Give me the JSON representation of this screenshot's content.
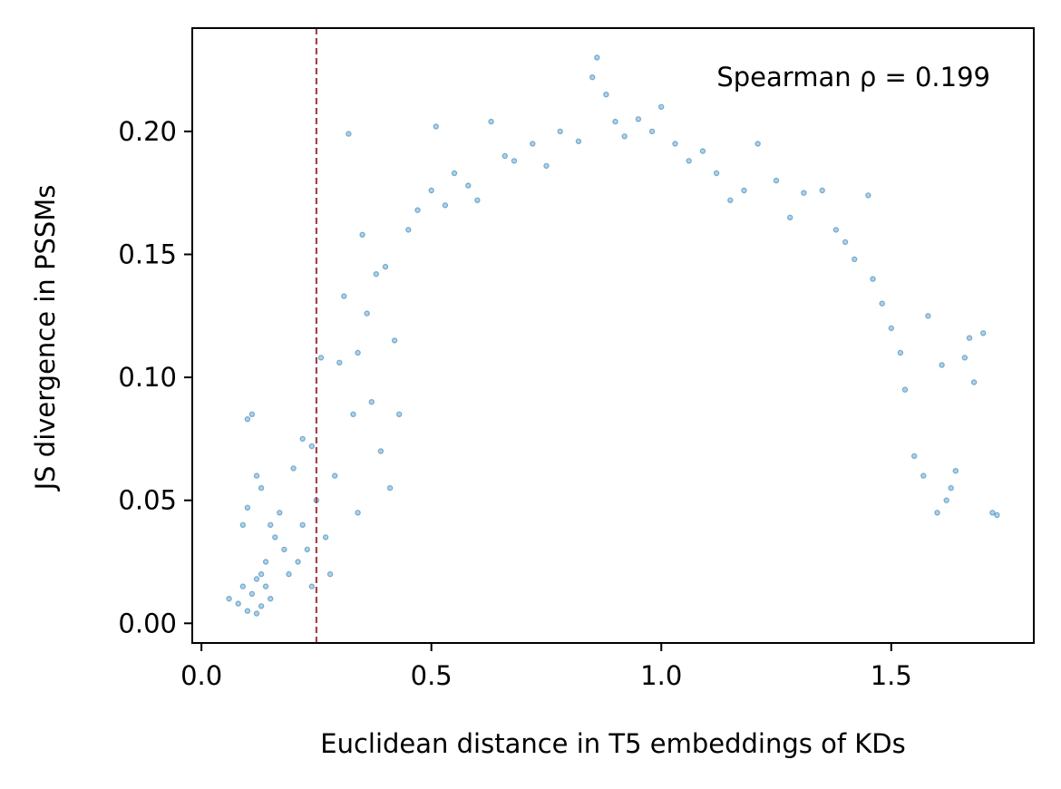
{
  "chart_data": {
    "type": "scatter",
    "title": "",
    "xlabel": "Euclidean distance in T5 embeddings of KDs",
    "ylabel": "JS divergence in PSSMs",
    "xlim": [
      -0.02,
      1.81
    ],
    "ylim": [
      -0.008,
      0.242
    ],
    "x_ticks": [
      0.0,
      0.5,
      1.0,
      1.5
    ],
    "x_tick_labels": [
      "0.0",
      "0.5",
      "1.0",
      "1.5"
    ],
    "y_ticks": [
      0.0,
      0.05,
      0.1,
      0.15,
      0.2
    ],
    "y_tick_labels": [
      "0.00",
      "0.05",
      "0.10",
      "0.15",
      "0.20"
    ],
    "grid": false,
    "annotation": "Spearman ρ = 0.199",
    "threshold_line": {
      "x": 0.25,
      "style": "dashed",
      "color": "#a0454a"
    },
    "series": [
      {
        "color": "#1f77b4",
        "opacity": 0.35,
        "values": [
          [
            0.06,
            0.01
          ],
          [
            0.08,
            0.008
          ],
          [
            0.09,
            0.015
          ],
          [
            0.1,
            0.005
          ],
          [
            0.1,
            0.083
          ],
          [
            0.11,
            0.085
          ],
          [
            0.11,
            0.012
          ],
          [
            0.12,
            0.018
          ],
          [
            0.12,
            0.004
          ],
          [
            0.13,
            0.02
          ],
          [
            0.13,
            0.007
          ],
          [
            0.14,
            0.015
          ],
          [
            0.14,
            0.025
          ],
          [
            0.15,
            0.01
          ],
          [
            0.09,
            0.04
          ],
          [
            0.1,
            0.047
          ],
          [
            0.12,
            0.06
          ],
          [
            0.13,
            0.055
          ],
          [
            0.15,
            0.04
          ],
          [
            0.16,
            0.035
          ],
          [
            0.17,
            0.045
          ],
          [
            0.18,
            0.03
          ],
          [
            0.19,
            0.02
          ],
          [
            0.2,
            0.063
          ],
          [
            0.21,
            0.025
          ],
          [
            0.22,
            0.075
          ],
          [
            0.22,
            0.04
          ],
          [
            0.23,
            0.03
          ],
          [
            0.24,
            0.072
          ],
          [
            0.24,
            0.015
          ],
          [
            0.25,
            0.05
          ],
          [
            0.26,
            0.108
          ],
          [
            0.27,
            0.035
          ],
          [
            0.28,
            0.02
          ],
          [
            0.29,
            0.06
          ],
          [
            0.3,
            0.106
          ],
          [
            0.31,
            0.133
          ],
          [
            0.32,
            0.199
          ],
          [
            0.33,
            0.085
          ],
          [
            0.34,
            0.11
          ],
          [
            0.34,
            0.045
          ],
          [
            0.35,
            0.158
          ],
          [
            0.36,
            0.126
          ],
          [
            0.37,
            0.09
          ],
          [
            0.38,
            0.142
          ],
          [
            0.39,
            0.07
          ],
          [
            0.4,
            0.145
          ],
          [
            0.41,
            0.055
          ],
          [
            0.42,
            0.115
          ],
          [
            0.43,
            0.085
          ],
          [
            0.45,
            0.16
          ],
          [
            0.47,
            0.168
          ],
          [
            0.5,
            0.176
          ],
          [
            0.51,
            0.202
          ],
          [
            0.53,
            0.17
          ],
          [
            0.55,
            0.183
          ],
          [
            0.58,
            0.178
          ],
          [
            0.6,
            0.172
          ],
          [
            0.63,
            0.204
          ],
          [
            0.66,
            0.19
          ],
          [
            0.68,
            0.188
          ],
          [
            0.72,
            0.195
          ],
          [
            0.75,
            0.186
          ],
          [
            0.78,
            0.2
          ],
          [
            0.82,
            0.196
          ],
          [
            0.85,
            0.222
          ],
          [
            0.86,
            0.23
          ],
          [
            0.88,
            0.215
          ],
          [
            0.9,
            0.204
          ],
          [
            0.92,
            0.198
          ],
          [
            0.95,
            0.205
          ],
          [
            0.98,
            0.2
          ],
          [
            1.0,
            0.21
          ],
          [
            1.03,
            0.195
          ],
          [
            1.06,
            0.188
          ],
          [
            1.09,
            0.192
          ],
          [
            1.12,
            0.183
          ],
          [
            1.15,
            0.172
          ],
          [
            1.18,
            0.176
          ],
          [
            1.21,
            0.195
          ],
          [
            1.25,
            0.18
          ],
          [
            1.28,
            0.165
          ],
          [
            1.31,
            0.175
          ],
          [
            1.35,
            0.176
          ],
          [
            1.38,
            0.16
          ],
          [
            1.4,
            0.155
          ],
          [
            1.42,
            0.148
          ],
          [
            1.45,
            0.174
          ],
          [
            1.46,
            0.14
          ],
          [
            1.48,
            0.13
          ],
          [
            1.5,
            0.12
          ],
          [
            1.52,
            0.11
          ],
          [
            1.53,
            0.095
          ],
          [
            1.55,
            0.068
          ],
          [
            1.57,
            0.06
          ],
          [
            1.58,
            0.125
          ],
          [
            1.6,
            0.045
          ],
          [
            1.61,
            0.105
          ],
          [
            1.62,
            0.05
          ],
          [
            1.63,
            0.055
          ],
          [
            1.64,
            0.062
          ],
          [
            1.66,
            0.108
          ],
          [
            1.67,
            0.116
          ],
          [
            1.68,
            0.098
          ],
          [
            1.7,
            0.118
          ],
          [
            1.72,
            0.045
          ],
          [
            1.73,
            0.044
          ]
        ]
      }
    ]
  }
}
